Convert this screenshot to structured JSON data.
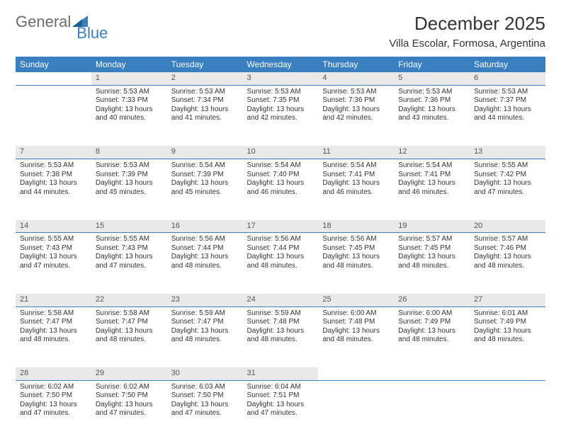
{
  "brand": {
    "part1": "General",
    "part2": "Blue"
  },
  "header": {
    "month_title": "December 2025",
    "location": "Villa Escolar, Formosa, Argentina"
  },
  "colors": {
    "header_bg": "#3a7fbf",
    "header_text": "#ffffff",
    "daynum_bg": "#e9e9e9",
    "daynum_text": "#555555",
    "body_text": "#333333",
    "divider": "#3a7fbf",
    "logo_gray": "#6b6b6b",
    "logo_blue": "#3a7fbf",
    "page_bg": "#ffffff"
  },
  "weekdays": [
    "Sunday",
    "Monday",
    "Tuesday",
    "Wednesday",
    "Thursday",
    "Friday",
    "Saturday"
  ],
  "weeks": [
    {
      "nums": [
        "",
        "1",
        "2",
        "3",
        "4",
        "5",
        "6"
      ],
      "cells": [
        null,
        {
          "sunrise": "Sunrise: 5:53 AM",
          "sunset": "Sunset: 7:33 PM",
          "day1": "Daylight: 13 hours",
          "day2": "and 40 minutes."
        },
        {
          "sunrise": "Sunrise: 5:53 AM",
          "sunset": "Sunset: 7:34 PM",
          "day1": "Daylight: 13 hours",
          "day2": "and 41 minutes."
        },
        {
          "sunrise": "Sunrise: 5:53 AM",
          "sunset": "Sunset: 7:35 PM",
          "day1": "Daylight: 13 hours",
          "day2": "and 42 minutes."
        },
        {
          "sunrise": "Sunrise: 5:53 AM",
          "sunset": "Sunset: 7:36 PM",
          "day1": "Daylight: 13 hours",
          "day2": "and 42 minutes."
        },
        {
          "sunrise": "Sunrise: 5:53 AM",
          "sunset": "Sunset: 7:36 PM",
          "day1": "Daylight: 13 hours",
          "day2": "and 43 minutes."
        },
        {
          "sunrise": "Sunrise: 5:53 AM",
          "sunset": "Sunset: 7:37 PM",
          "day1": "Daylight: 13 hours",
          "day2": "and 44 minutes."
        }
      ]
    },
    {
      "nums": [
        "7",
        "8",
        "9",
        "10",
        "11",
        "12",
        "13"
      ],
      "cells": [
        {
          "sunrise": "Sunrise: 5:53 AM",
          "sunset": "Sunset: 7:38 PM",
          "day1": "Daylight: 13 hours",
          "day2": "and 44 minutes."
        },
        {
          "sunrise": "Sunrise: 5:53 AM",
          "sunset": "Sunset: 7:39 PM",
          "day1": "Daylight: 13 hours",
          "day2": "and 45 minutes."
        },
        {
          "sunrise": "Sunrise: 5:54 AM",
          "sunset": "Sunset: 7:39 PM",
          "day1": "Daylight: 13 hours",
          "day2": "and 45 minutes."
        },
        {
          "sunrise": "Sunrise: 5:54 AM",
          "sunset": "Sunset: 7:40 PM",
          "day1": "Daylight: 13 hours",
          "day2": "and 46 minutes."
        },
        {
          "sunrise": "Sunrise: 5:54 AM",
          "sunset": "Sunset: 7:41 PM",
          "day1": "Daylight: 13 hours",
          "day2": "and 46 minutes."
        },
        {
          "sunrise": "Sunrise: 5:54 AM",
          "sunset": "Sunset: 7:41 PM",
          "day1": "Daylight: 13 hours",
          "day2": "and 46 minutes."
        },
        {
          "sunrise": "Sunrise: 5:55 AM",
          "sunset": "Sunset: 7:42 PM",
          "day1": "Daylight: 13 hours",
          "day2": "and 47 minutes."
        }
      ]
    },
    {
      "nums": [
        "14",
        "15",
        "16",
        "17",
        "18",
        "19",
        "20"
      ],
      "cells": [
        {
          "sunrise": "Sunrise: 5:55 AM",
          "sunset": "Sunset: 7:43 PM",
          "day1": "Daylight: 13 hours",
          "day2": "and 47 minutes."
        },
        {
          "sunrise": "Sunrise: 5:55 AM",
          "sunset": "Sunset: 7:43 PM",
          "day1": "Daylight: 13 hours",
          "day2": "and 47 minutes."
        },
        {
          "sunrise": "Sunrise: 5:56 AM",
          "sunset": "Sunset: 7:44 PM",
          "day1": "Daylight: 13 hours",
          "day2": "and 48 minutes."
        },
        {
          "sunrise": "Sunrise: 5:56 AM",
          "sunset": "Sunset: 7:44 PM",
          "day1": "Daylight: 13 hours",
          "day2": "and 48 minutes."
        },
        {
          "sunrise": "Sunrise: 5:56 AM",
          "sunset": "Sunset: 7:45 PM",
          "day1": "Daylight: 13 hours",
          "day2": "and 48 minutes."
        },
        {
          "sunrise": "Sunrise: 5:57 AM",
          "sunset": "Sunset: 7:45 PM",
          "day1": "Daylight: 13 hours",
          "day2": "and 48 minutes."
        },
        {
          "sunrise": "Sunrise: 5:57 AM",
          "sunset": "Sunset: 7:46 PM",
          "day1": "Daylight: 13 hours",
          "day2": "and 48 minutes."
        }
      ]
    },
    {
      "nums": [
        "21",
        "22",
        "23",
        "24",
        "25",
        "26",
        "27"
      ],
      "cells": [
        {
          "sunrise": "Sunrise: 5:58 AM",
          "sunset": "Sunset: 7:47 PM",
          "day1": "Daylight: 13 hours",
          "day2": "and 48 minutes."
        },
        {
          "sunrise": "Sunrise: 5:58 AM",
          "sunset": "Sunset: 7:47 PM",
          "day1": "Daylight: 13 hours",
          "day2": "and 48 minutes."
        },
        {
          "sunrise": "Sunrise: 5:59 AM",
          "sunset": "Sunset: 7:47 PM",
          "day1": "Daylight: 13 hours",
          "day2": "and 48 minutes."
        },
        {
          "sunrise": "Sunrise: 5:59 AM",
          "sunset": "Sunset: 7:48 PM",
          "day1": "Daylight: 13 hours",
          "day2": "and 48 minutes."
        },
        {
          "sunrise": "Sunrise: 6:00 AM",
          "sunset": "Sunset: 7:48 PM",
          "day1": "Daylight: 13 hours",
          "day2": "and 48 minutes."
        },
        {
          "sunrise": "Sunrise: 6:00 AM",
          "sunset": "Sunset: 7:49 PM",
          "day1": "Daylight: 13 hours",
          "day2": "and 48 minutes."
        },
        {
          "sunrise": "Sunrise: 6:01 AM",
          "sunset": "Sunset: 7:49 PM",
          "day1": "Daylight: 13 hours",
          "day2": "and 48 minutes."
        }
      ]
    },
    {
      "nums": [
        "28",
        "29",
        "30",
        "31",
        "",
        "",
        ""
      ],
      "cells": [
        {
          "sunrise": "Sunrise: 6:02 AM",
          "sunset": "Sunset: 7:50 PM",
          "day1": "Daylight: 13 hours",
          "day2": "and 47 minutes."
        },
        {
          "sunrise": "Sunrise: 6:02 AM",
          "sunset": "Sunset: 7:50 PM",
          "day1": "Daylight: 13 hours",
          "day2": "and 47 minutes."
        },
        {
          "sunrise": "Sunrise: 6:03 AM",
          "sunset": "Sunset: 7:50 PM",
          "day1": "Daylight: 13 hours",
          "day2": "and 47 minutes."
        },
        {
          "sunrise": "Sunrise: 6:04 AM",
          "sunset": "Sunset: 7:51 PM",
          "day1": "Daylight: 13 hours",
          "day2": "and 47 minutes."
        },
        null,
        null,
        null
      ]
    }
  ]
}
